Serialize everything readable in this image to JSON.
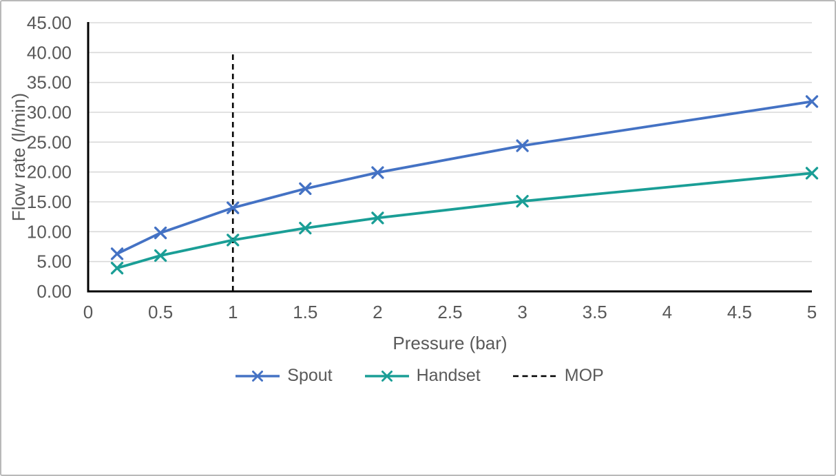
{
  "chart_data": {
    "type": "line",
    "title": "",
    "xlabel": "Pressure (bar)",
    "ylabel": "Flow rate (l/min)",
    "xlim": [
      0,
      5
    ],
    "ylim": [
      0,
      45
    ],
    "x_tick_values": [
      0,
      0.5,
      1,
      1.5,
      2,
      2.5,
      3,
      3.5,
      4,
      4.5,
      5
    ],
    "x_tick_labels": [
      "0",
      "0.5",
      "1",
      "1.5",
      "2",
      "2.5",
      "3",
      "3.5",
      "4",
      "4.5",
      "5"
    ],
    "y_tick_values": [
      0,
      5,
      10,
      15,
      20,
      25,
      30,
      35,
      40,
      45
    ],
    "y_tick_labels": [
      "0.00",
      "5.00",
      "10.00",
      "15.00",
      "20.00",
      "25.00",
      "30.00",
      "35.00",
      "40.00",
      "45.00"
    ],
    "grid": true,
    "legend_position": "bottom",
    "x": [
      0.2,
      0.5,
      1,
      1.5,
      2,
      3,
      5
    ],
    "series": [
      {
        "name": "Spout",
        "color": "#4472C4",
        "marker": "x",
        "values": [
          6.3,
          9.8,
          14.0,
          17.2,
          19.9,
          24.4,
          31.8
        ]
      },
      {
        "name": "Handset",
        "color": "#1A9E96",
        "marker": "x",
        "values": [
          3.9,
          6.0,
          8.6,
          10.6,
          12.3,
          15.1,
          19.8
        ]
      }
    ],
    "reference_line": {
      "name": "MOP",
      "x": 1.0,
      "y_from": 0,
      "y_to": 40,
      "style": "dashed",
      "color": "#000000"
    },
    "colors": {
      "gridline": "#D9D9D9",
      "axis": "#000000",
      "tick_label": "#595959",
      "background": "#FFFFFF"
    }
  }
}
